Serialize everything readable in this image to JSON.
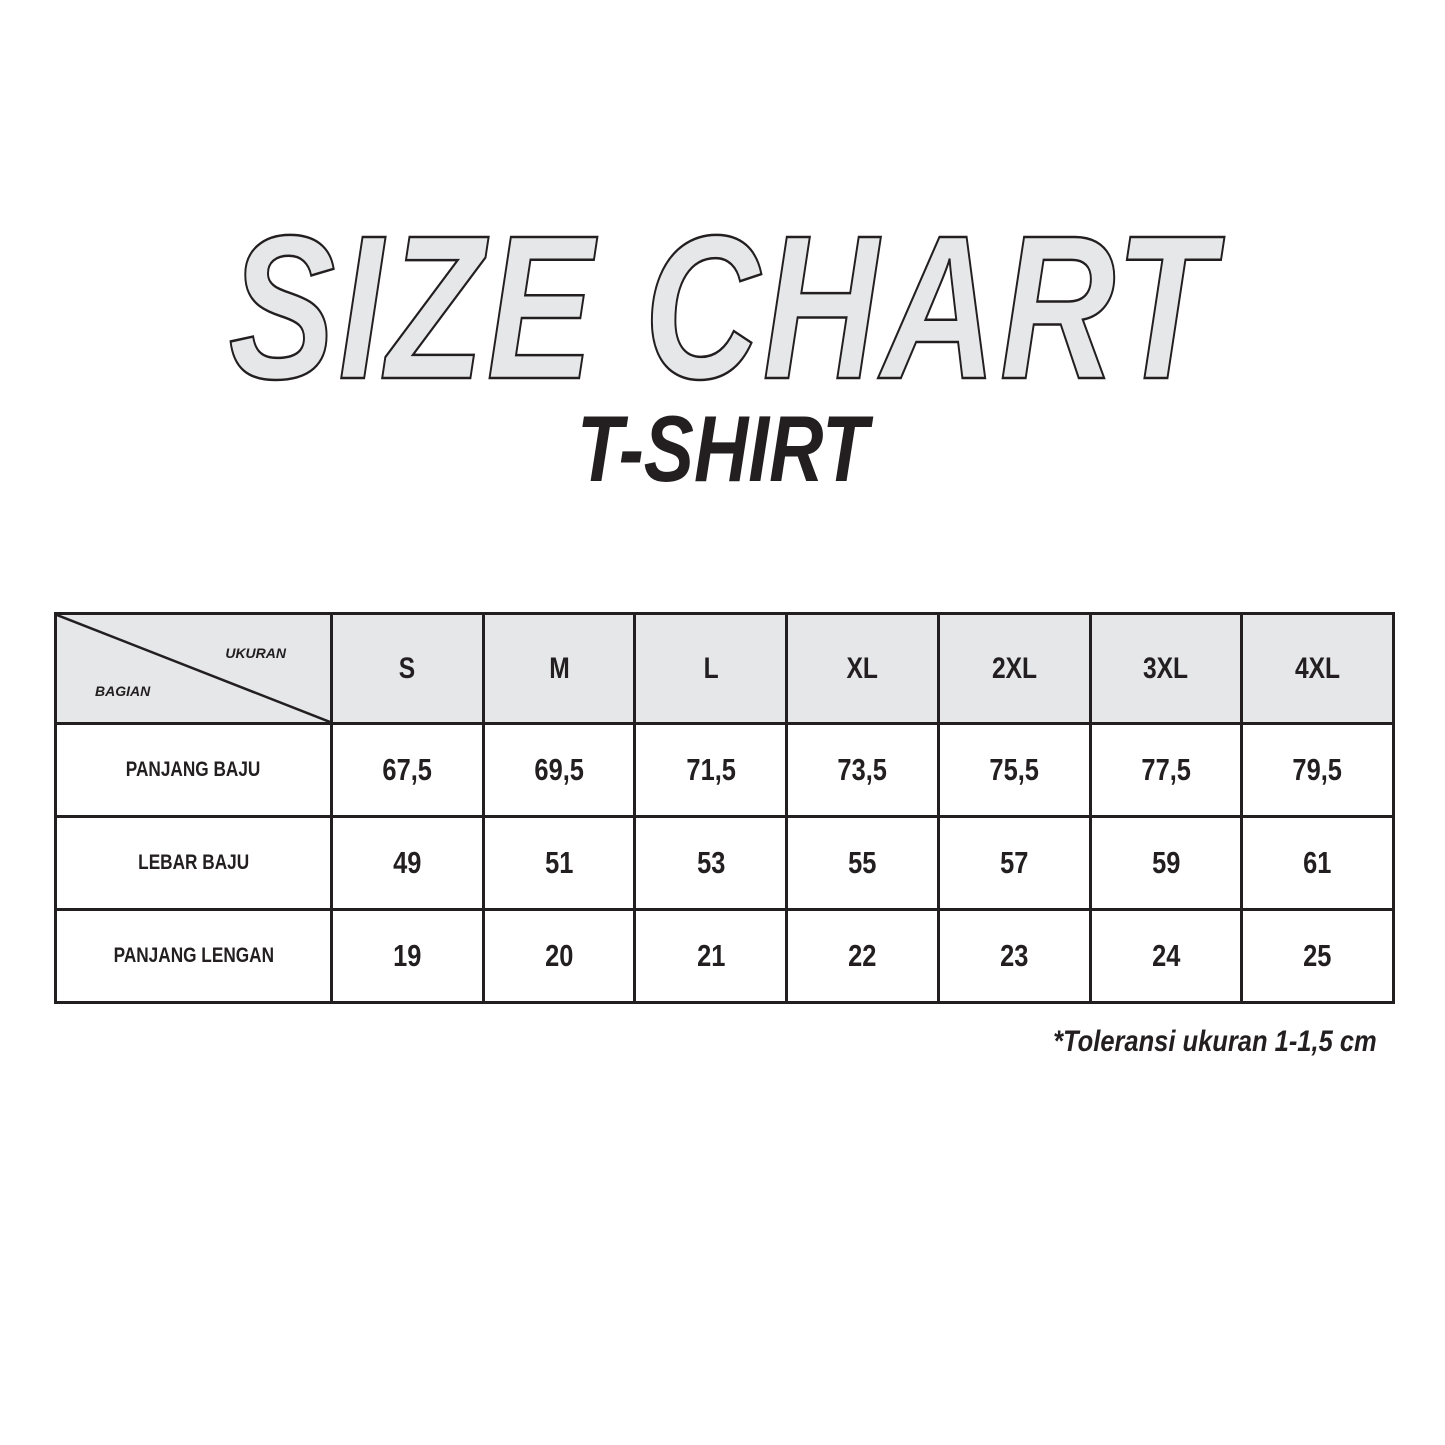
{
  "title": "SIZE CHART",
  "subtitle": "T-SHIRT",
  "table": {
    "corner_top": "UKURAN",
    "corner_bottom": "BAGIAN",
    "sizes": [
      "S",
      "M",
      "L",
      "XL",
      "2XL",
      "3XL",
      "4XL"
    ],
    "rows": [
      {
        "label": "PANJANG BAJU",
        "values": [
          "67,5",
          "69,5",
          "71,5",
          "73,5",
          "75,5",
          "77,5",
          "79,5"
        ]
      },
      {
        "label": "LEBAR BAJU",
        "values": [
          "49",
          "51",
          "53",
          "55",
          "57",
          "59",
          "61"
        ]
      },
      {
        "label": "PANJANG LENGAN",
        "values": [
          "19",
          "20",
          "21",
          "22",
          "23",
          "24",
          "25"
        ]
      }
    ]
  },
  "note": "*Toleransi ukuran 1-1,5 cm",
  "colors": {
    "header_bg": "#e6e7e8",
    "ink": "#231f20"
  }
}
